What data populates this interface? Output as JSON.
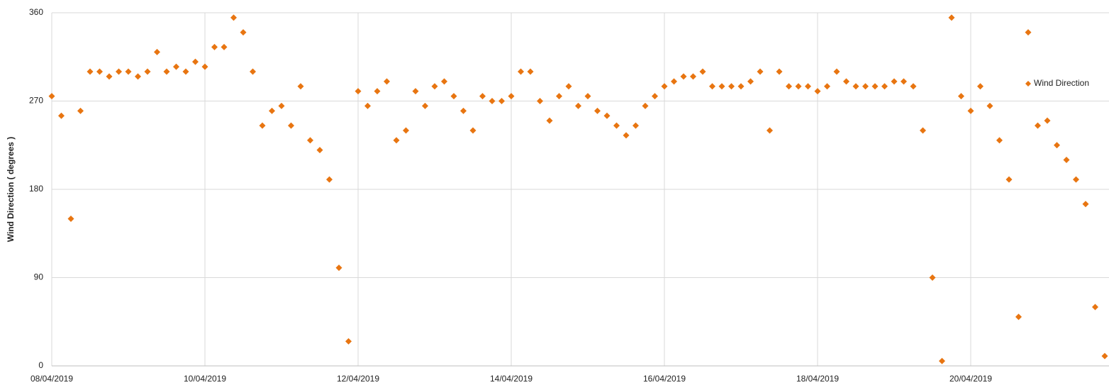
{
  "chart_data": {
    "type": "scatter",
    "y_label": "Wind Direction ( degrees )",
    "legend": "right",
    "grid": true,
    "xlim": [
      "2019-04-08T00:00",
      "2019-04-21T19:20"
    ],
    "xticks": [
      {
        "value": "2019-04-08T00:00",
        "label": "08/04/2019"
      },
      {
        "value": "2019-04-10T00:00",
        "label": "10/04/2019"
      },
      {
        "value": "2019-04-12T00:00",
        "label": "12/04/2019"
      },
      {
        "value": "2019-04-14T00:00",
        "label": "14/04/2019"
      },
      {
        "value": "2019-04-16T00:00",
        "label": "16/04/2019"
      },
      {
        "value": "2019-04-18T00:00",
        "label": "18/04/2019"
      },
      {
        "value": "2019-04-20T00:00",
        "label": "20/04/2019"
      }
    ],
    "ylim": [
      0,
      360
    ],
    "yticks": [
      0,
      90,
      180,
      270,
      360
    ],
    "x": [
      "2019-04-08T00:00",
      "2019-04-08T03:00",
      "2019-04-08T06:00",
      "2019-04-08T09:00",
      "2019-04-08T12:00",
      "2019-04-08T15:00",
      "2019-04-08T18:00",
      "2019-04-08T21:00",
      "2019-04-09T00:00",
      "2019-04-09T03:00",
      "2019-04-09T06:00",
      "2019-04-09T09:00",
      "2019-04-09T12:00",
      "2019-04-09T15:00",
      "2019-04-09T18:00",
      "2019-04-09T21:00",
      "2019-04-10T00:00",
      "2019-04-10T03:00",
      "2019-04-10T06:00",
      "2019-04-10T09:00",
      "2019-04-10T12:00",
      "2019-04-10T15:00",
      "2019-04-10T18:00",
      "2019-04-10T21:00",
      "2019-04-11T00:00",
      "2019-04-11T03:00",
      "2019-04-11T06:00",
      "2019-04-11T09:00",
      "2019-04-11T12:00",
      "2019-04-11T15:00",
      "2019-04-11T18:00",
      "2019-04-11T21:00",
      "2019-04-12T00:00",
      "2019-04-12T03:00",
      "2019-04-12T06:00",
      "2019-04-12T09:00",
      "2019-04-12T12:00",
      "2019-04-12T15:00",
      "2019-04-12T18:00",
      "2019-04-12T21:00",
      "2019-04-13T00:00",
      "2019-04-13T03:00",
      "2019-04-13T06:00",
      "2019-04-13T09:00",
      "2019-04-13T12:00",
      "2019-04-13T15:00",
      "2019-04-13T18:00",
      "2019-04-13T21:00",
      "2019-04-14T00:00",
      "2019-04-14T03:00",
      "2019-04-14T06:00",
      "2019-04-14T09:00",
      "2019-04-14T12:00",
      "2019-04-14T15:00",
      "2019-04-14T18:00",
      "2019-04-14T21:00",
      "2019-04-15T00:00",
      "2019-04-15T03:00",
      "2019-04-15T06:00",
      "2019-04-15T09:00",
      "2019-04-15T12:00",
      "2019-04-15T15:00",
      "2019-04-15T18:00",
      "2019-04-15T21:00",
      "2019-04-16T00:00",
      "2019-04-16T03:00",
      "2019-04-16T06:00",
      "2019-04-16T09:00",
      "2019-04-16T12:00",
      "2019-04-16T15:00",
      "2019-04-16T18:00",
      "2019-04-16T21:00",
      "2019-04-17T00:00",
      "2019-04-17T03:00",
      "2019-04-17T06:00",
      "2019-04-17T09:00",
      "2019-04-17T12:00",
      "2019-04-17T15:00",
      "2019-04-17T18:00",
      "2019-04-17T21:00",
      "2019-04-18T00:00",
      "2019-04-18T03:00",
      "2019-04-18T06:00",
      "2019-04-18T09:00",
      "2019-04-18T12:00",
      "2019-04-18T15:00",
      "2019-04-18T18:00",
      "2019-04-18T21:00",
      "2019-04-19T00:00",
      "2019-04-19T03:00",
      "2019-04-19T06:00",
      "2019-04-19T09:00",
      "2019-04-19T12:00",
      "2019-04-19T15:00",
      "2019-04-19T18:00",
      "2019-04-19T21:00",
      "2019-04-20T00:00",
      "2019-04-20T03:00",
      "2019-04-20T06:00",
      "2019-04-20T09:00",
      "2019-04-20T12:00",
      "2019-04-20T15:00",
      "2019-04-20T18:00",
      "2019-04-20T21:00",
      "2019-04-21T00:00",
      "2019-04-21T03:00",
      "2019-04-21T06:00",
      "2019-04-21T09:00",
      "2019-04-21T12:00",
      "2019-04-21T15:00",
      "2019-04-21T18:00"
    ],
    "series": [
      {
        "name": "Wind Direction",
        "color": "#e87511",
        "values": [
          275,
          255,
          150,
          260,
          300,
          300,
          295,
          300,
          300,
          295,
          300,
          320,
          300,
          305,
          300,
          310,
          305,
          325,
          325,
          355,
          340,
          300,
          245,
          260,
          265,
          245,
          285,
          230,
          220,
          190,
          100,
          25,
          280,
          265,
          280,
          290,
          230,
          240,
          280,
          265,
          285,
          290,
          275,
          260,
          240,
          275,
          270,
          270,
          275,
          300,
          300,
          270,
          250,
          275,
          285,
          265,
          275,
          260,
          255,
          245,
          235,
          245,
          265,
          275,
          285,
          290,
          295,
          295,
          300,
          285,
          285,
          285,
          285,
          290,
          300,
          240,
          300,
          285,
          285,
          285,
          280,
          285,
          300,
          290,
          285,
          285,
          285,
          285,
          290,
          290,
          285,
          240,
          90,
          5,
          355,
          275,
          260,
          285,
          265,
          230,
          190,
          50,
          340,
          245,
          250,
          225,
          210,
          190,
          165,
          60,
          10
        ]
      }
    ]
  }
}
